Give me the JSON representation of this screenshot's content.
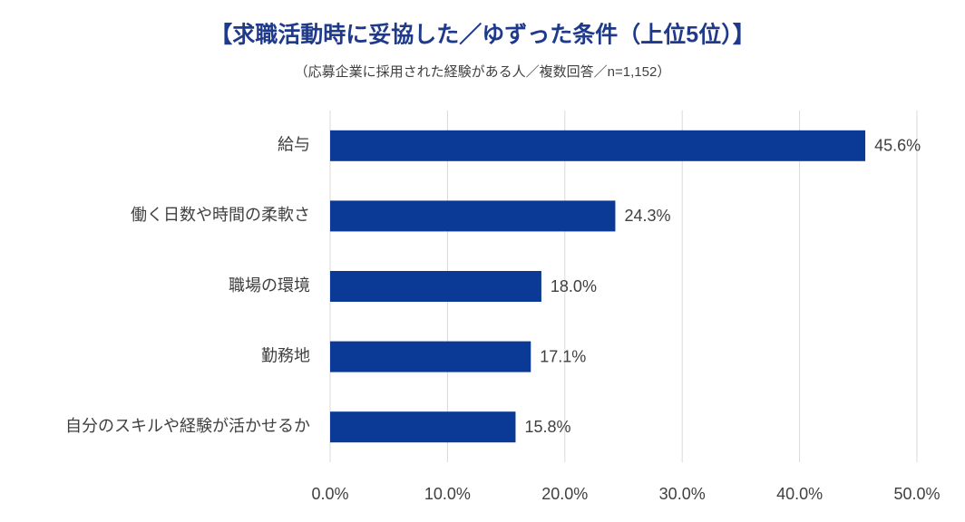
{
  "chart_data": {
    "type": "hbar",
    "title": "【求職活動時に妥協した／ゆずった条件（上位5位）】",
    "subtitle": "（応募企業に採用された経験がある人／複数回答／n=1,152）",
    "categories": [
      "給与",
      "働く日数や時間の柔軟さ",
      "職場の環境",
      "勤務地",
      "自分のスキルや経験が活かせるか"
    ],
    "values": [
      45.6,
      24.3,
      18.0,
      17.1,
      15.8
    ],
    "value_labels": [
      "45.6%",
      "24.3%",
      "18.0%",
      "17.1%",
      "15.8%"
    ],
    "color": "#0b3a96",
    "xlim": [
      0,
      50
    ],
    "xticks": [
      {
        "value": 0,
        "label": "0.0%"
      },
      {
        "value": 10,
        "label": "10.0%"
      },
      {
        "value": 20,
        "label": "20.0%"
      },
      {
        "value": 30,
        "label": "30.0%"
      },
      {
        "value": 40,
        "label": "40.0%"
      },
      {
        "value": 50,
        "label": "50.0%"
      }
    ],
    "grid": true
  }
}
